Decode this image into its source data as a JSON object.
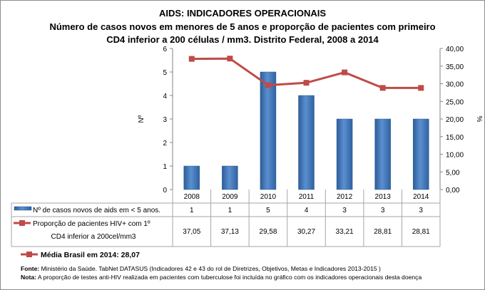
{
  "chart_data": {
    "type": "bar+line",
    "title": "AIDS: INDICADORES OPERACIONAIS",
    "subtitle_line1": "Número de casos novos em menores de 5 anos e proporção de pacientes com primeiro",
    "subtitle_line2": "CD4 inferior a 200 células / mm3. Distrito Federal, 2008 a 2014",
    "categories": [
      "2008",
      "2009",
      "2010",
      "2011",
      "2012",
      "2013",
      "2014"
    ],
    "ylabel_left": "Nº",
    "ylabel_right": "%",
    "ylim_left": [
      0,
      6
    ],
    "ylim_right": [
      0,
      40
    ],
    "left_ticks": [
      "0",
      "1",
      "2",
      "3",
      "4",
      "5",
      "6"
    ],
    "right_ticks": [
      "0,00",
      "5,00",
      "10,00",
      "15,00",
      "20,00",
      "25,00",
      "30,00",
      "35,00",
      "40,00"
    ],
    "series": [
      {
        "name": "Nº de casos novos de aids em < 5 anos.",
        "type": "bar",
        "axis": "left",
        "color": "#4a7ebb",
        "values": [
          1,
          1,
          5,
          4,
          3,
          3,
          3
        ],
        "labels": [
          "1",
          "1",
          "5",
          "4",
          "3",
          "3",
          "3"
        ]
      },
      {
        "name_line1": "Proporção de pacientes HIV+ com 1º",
        "name_line2": "CD4 inferior a 200cel/mm3",
        "type": "line",
        "axis": "right",
        "color": "#be4b48",
        "values": [
          37.05,
          37.13,
          29.58,
          30.27,
          33.21,
          28.81,
          28.81
        ],
        "labels": [
          "37,05",
          "37,13",
          "29,58",
          "30,27",
          "33,21",
          "28,81",
          "28,81"
        ]
      }
    ],
    "data_table": true,
    "legend_extra": "Média Brasil em 2014: 28,07"
  },
  "footer": {
    "fonte_label": "Fonte:",
    "fonte_text": " Ministério da Saúde. TabNet DATASUS (Indicadores 42 e 43 do rol de Diretrizes, Objetivos, Metas e Indicadores 2013-2015 )",
    "nota_label": "Nota:",
    "nota_text": " A proporção de testes anti-HIV realizada em pacientes com tuberculose foi incluída no gráfico com os indicadores operacionais desta doença"
  }
}
